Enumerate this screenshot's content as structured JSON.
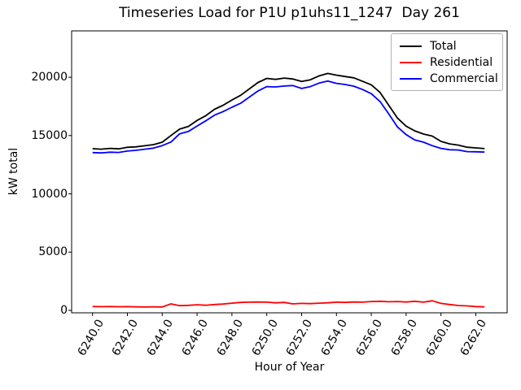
{
  "window_title": "Timeseries Load for P1U p1uhs11_1247  Day 261",
  "chart_data": {
    "type": "line",
    "title": "Timeseries Load for P1U p1uhs11_1247  Day 261",
    "xlabel": "Hour of Year",
    "ylabel": "kW total",
    "grid": false,
    "legend_position": "upper right",
    "xlim": [
      6238.8,
      6263.8
    ],
    "ylim": [
      -210,
      23980
    ],
    "yticks": [
      0,
      5000,
      10000,
      15000,
      20000
    ],
    "xticks": {
      "values": [
        6240,
        6242,
        6244,
        6246,
        6248,
        6250,
        6252,
        6254,
        6256,
        6258,
        6260,
        6262
      ],
      "labels": [
        "6240.0",
        "6242.0",
        "6244.0",
        "6246.0",
        "6248.0",
        "6250.0",
        "6252.0",
        "6254.0",
        "6256.0",
        "6258.0",
        "6260.0",
        "6262.0"
      ],
      "rotation_deg": 60
    },
    "x": [
      6240.0,
      6240.5,
      6241.0,
      6241.5,
      6242.0,
      6242.5,
      6243.0,
      6243.5,
      6244.0,
      6244.5,
      6245.0,
      6245.5,
      6246.0,
      6246.5,
      6247.0,
      6247.5,
      6248.0,
      6248.5,
      6249.0,
      6249.5,
      6250.0,
      6250.5,
      6251.0,
      6251.5,
      6252.0,
      6252.5,
      6253.0,
      6253.5,
      6254.0,
      6254.5,
      6255.0,
      6255.5,
      6256.0,
      6256.5,
      6257.0,
      6257.5,
      6258.0,
      6258.5,
      6259.0,
      6259.5,
      6260.0,
      6260.5,
      6261.0,
      6261.5,
      6262.0,
      6262.5
    ],
    "series": [
      {
        "name": "Total",
        "color": "#000000",
        "values": [
          13870,
          13830,
          13900,
          13860,
          13990,
          14030,
          14120,
          14220,
          14430,
          15000,
          15550,
          15780,
          16300,
          16700,
          17250,
          17600,
          18050,
          18450,
          19000,
          19550,
          19900,
          19820,
          19930,
          19850,
          19640,
          19780,
          20120,
          20330,
          20180,
          20060,
          19950,
          19650,
          19350,
          18700,
          17600,
          16500,
          15800,
          15400,
          15130,
          14950,
          14500,
          14280,
          14180,
          14000,
          13940,
          13880
        ]
      },
      {
        "name": "Residential",
        "color": "#ff0000",
        "values": [
          330,
          320,
          330,
          310,
          320,
          300,
          290,
          300,
          290,
          560,
          400,
          430,
          480,
          440,
          500,
          540,
          620,
          680,
          700,
          720,
          700,
          650,
          680,
          560,
          600,
          580,
          620,
          650,
          700,
          680,
          720,
          700,
          760,
          780,
          740,
          760,
          720,
          780,
          700,
          820,
          600,
          500,
          420,
          380,
          330,
          300
        ]
      },
      {
        "name": "Commercial",
        "color": "#0000ff",
        "values": [
          13540,
          13510,
          13570,
          13550,
          13670,
          13730,
          13830,
          13920,
          14140,
          14440,
          15150,
          15350,
          15820,
          16260,
          16750,
          17060,
          17430,
          17770,
          18300,
          18830,
          19200,
          19170,
          19250,
          19290,
          19040,
          19200,
          19500,
          19680,
          19480,
          19380,
          19230,
          18950,
          18590,
          17920,
          16860,
          15740,
          15080,
          14620,
          14430,
          14130,
          13900,
          13780,
          13760,
          13620,
          13610,
          13580
        ]
      }
    ]
  }
}
